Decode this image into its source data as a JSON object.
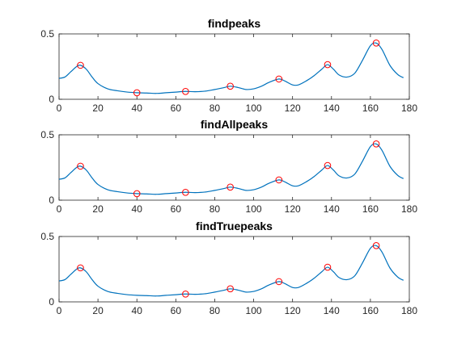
{
  "colors": {
    "signal": "#0072BD",
    "marker": "#FF0000",
    "axis": "#262626"
  },
  "chart_data": [
    {
      "type": "line",
      "title": "findpeaks",
      "xlim": [
        0,
        180
      ],
      "ylim": [
        0,
        0.5
      ],
      "xticks": [
        0,
        20,
        40,
        60,
        80,
        100,
        120,
        140,
        160,
        180
      ],
      "yticks": [
        0,
        0.5
      ],
      "grid": false,
      "series": [
        {
          "type": "line",
          "x": [
            0,
            3,
            6,
            9,
            11,
            14,
            17,
            20,
            25,
            30,
            35,
            40,
            45,
            50,
            55,
            60,
            65,
            70,
            75,
            80,
            85,
            88,
            92,
            96,
            100,
            104,
            108,
            113,
            116,
            120,
            123,
            127,
            131,
            135,
            138,
            141,
            144,
            148,
            152,
            156,
            160,
            163,
            166,
            170,
            174,
            177
          ],
          "y": [
            0.16,
            0.17,
            0.21,
            0.25,
            0.26,
            0.23,
            0.17,
            0.12,
            0.08,
            0.065,
            0.055,
            0.05,
            0.048,
            0.045,
            0.05,
            0.055,
            0.06,
            0.058,
            0.062,
            0.075,
            0.09,
            0.1,
            0.09,
            0.075,
            0.08,
            0.1,
            0.13,
            0.155,
            0.14,
            0.11,
            0.11,
            0.14,
            0.18,
            0.23,
            0.265,
            0.23,
            0.185,
            0.17,
            0.2,
            0.3,
            0.41,
            0.43,
            0.38,
            0.26,
            0.19,
            0.165
          ]
        },
        {
          "type": "scatter",
          "x": [
            11,
            40,
            65,
            88,
            113,
            138,
            163
          ],
          "y": [
            0.26,
            0.05,
            0.06,
            0.1,
            0.155,
            0.265,
            0.43
          ]
        }
      ]
    },
    {
      "type": "line",
      "title": "findAllpeaks",
      "xlim": [
        0,
        180
      ],
      "ylim": [
        0,
        0.5
      ],
      "xticks": [
        0,
        20,
        40,
        60,
        80,
        100,
        120,
        140,
        160,
        180
      ],
      "yticks": [
        0,
        0.5
      ],
      "grid": false,
      "series": [
        {
          "type": "line",
          "x": [
            0,
            3,
            6,
            9,
            11,
            14,
            17,
            20,
            25,
            30,
            35,
            40,
            45,
            50,
            55,
            60,
            65,
            70,
            75,
            80,
            85,
            88,
            92,
            96,
            100,
            104,
            108,
            113,
            116,
            120,
            123,
            127,
            131,
            135,
            138,
            141,
            144,
            148,
            152,
            156,
            160,
            163,
            166,
            170,
            174,
            177
          ],
          "y": [
            0.16,
            0.17,
            0.21,
            0.25,
            0.26,
            0.23,
            0.17,
            0.12,
            0.08,
            0.065,
            0.055,
            0.05,
            0.048,
            0.045,
            0.05,
            0.055,
            0.06,
            0.058,
            0.062,
            0.075,
            0.09,
            0.1,
            0.09,
            0.075,
            0.08,
            0.1,
            0.13,
            0.155,
            0.14,
            0.11,
            0.11,
            0.14,
            0.18,
            0.23,
            0.265,
            0.23,
            0.185,
            0.17,
            0.2,
            0.3,
            0.41,
            0.43,
            0.38,
            0.26,
            0.19,
            0.165
          ]
        },
        {
          "type": "scatter",
          "x": [
            11,
            40,
            65,
            88,
            113,
            138,
            163
          ],
          "y": [
            0.26,
            0.05,
            0.06,
            0.1,
            0.155,
            0.265,
            0.43
          ]
        }
      ]
    },
    {
      "type": "line",
      "title": "findTruepeaks",
      "xlim": [
        0,
        180
      ],
      "ylim": [
        0,
        0.5
      ],
      "xticks": [
        0,
        20,
        40,
        60,
        80,
        100,
        120,
        140,
        160,
        180
      ],
      "yticks": [
        0,
        0.5
      ],
      "grid": false,
      "series": [
        {
          "type": "line",
          "x": [
            0,
            3,
            6,
            9,
            11,
            14,
            17,
            20,
            25,
            30,
            35,
            40,
            45,
            50,
            55,
            60,
            65,
            70,
            75,
            80,
            85,
            88,
            92,
            96,
            100,
            104,
            108,
            113,
            116,
            120,
            123,
            127,
            131,
            135,
            138,
            141,
            144,
            148,
            152,
            156,
            160,
            163,
            166,
            170,
            174,
            177
          ],
          "y": [
            0.16,
            0.17,
            0.21,
            0.25,
            0.26,
            0.23,
            0.17,
            0.12,
            0.08,
            0.065,
            0.055,
            0.05,
            0.048,
            0.045,
            0.05,
            0.055,
            0.06,
            0.058,
            0.062,
            0.075,
            0.09,
            0.1,
            0.09,
            0.075,
            0.08,
            0.1,
            0.13,
            0.155,
            0.14,
            0.11,
            0.11,
            0.14,
            0.18,
            0.23,
            0.265,
            0.23,
            0.185,
            0.17,
            0.2,
            0.3,
            0.41,
            0.43,
            0.38,
            0.26,
            0.19,
            0.165
          ]
        },
        {
          "type": "scatter",
          "x": [
            11,
            65,
            88,
            113,
            138,
            163
          ],
          "y": [
            0.26,
            0.06,
            0.1,
            0.155,
            0.265,
            0.43
          ]
        }
      ]
    }
  ]
}
